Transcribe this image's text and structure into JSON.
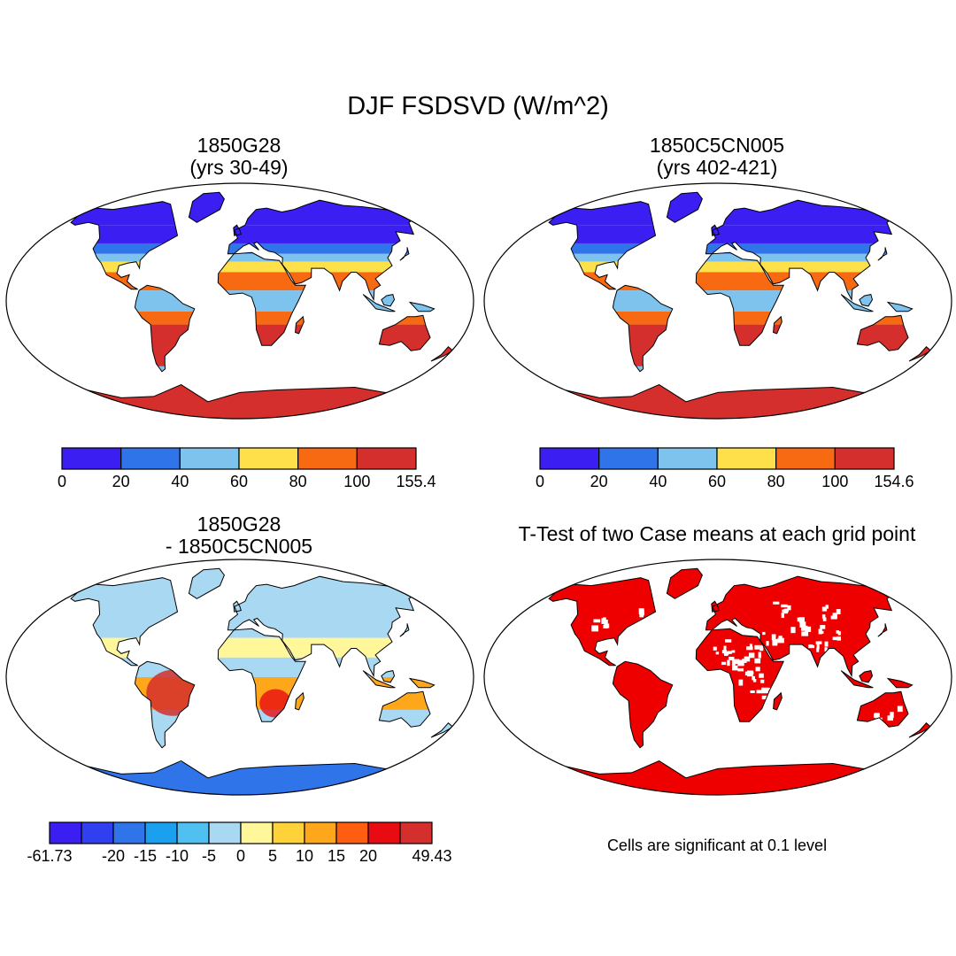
{
  "title": "DJF FSDSVD (W/m^2)",
  "panels": {
    "top_left": {
      "title_line1": "1850G28",
      "title_line2": "(yrs 30-49)",
      "colorbar_labels": [
        "0",
        "20",
        "40",
        "60",
        "80",
        "100",
        "155.4"
      ],
      "colorbar_colors": [
        "#3b1ff2",
        "#2f74e8",
        "#7ec3ee",
        "#fde04a",
        "#f86a12",
        "#d42f2c"
      ]
    },
    "top_right": {
      "title_line1": "1850C5CN005",
      "title_line2": "(yrs 402-421)",
      "colorbar_labels": [
        "0",
        "20",
        "40",
        "60",
        "80",
        "100",
        "154.6"
      ],
      "colorbar_colors": [
        "#3b1ff2",
        "#2f74e8",
        "#7ec3ee",
        "#fde04a",
        "#f86a12",
        "#d42f2c"
      ]
    },
    "bottom_left": {
      "title_line1": "1850G28",
      "title_line2": "- 1850C5CN005",
      "colorbar_labels": [
        "-61.73",
        "",
        "-20",
        "-15",
        "-10",
        "-5",
        "0",
        "5",
        "10",
        "15",
        "20",
        "",
        "49.43"
      ],
      "colorbar_colors": [
        "#3b1ff2",
        "#3040ee",
        "#2f74e8",
        "#1aa0ee",
        "#4fc0f0",
        "#a8d8f2",
        "#fff79a",
        "#ffd23a",
        "#ffa71a",
        "#ff5e10",
        "#e80c12",
        "#d42f2c"
      ]
    },
    "bottom_right": {
      "title": "T-Test of two Case means at each grid point",
      "note": "Cells are significant at 0.1 level",
      "significant_color": "#ee0000"
    }
  }
}
